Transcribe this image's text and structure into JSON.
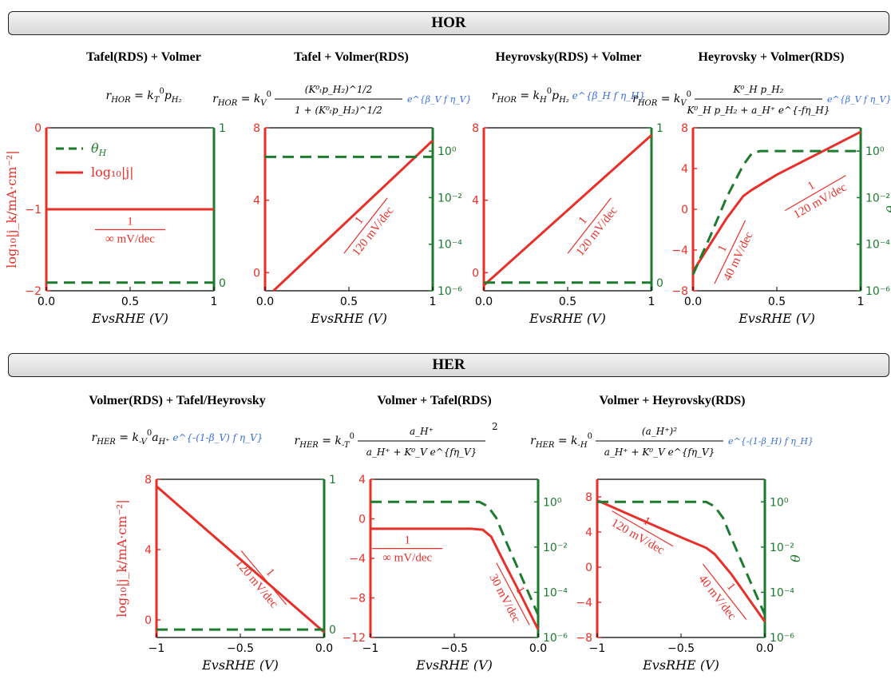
{
  "sections": {
    "hor_label": "HOR",
    "her_label": "HER"
  },
  "colors": {
    "current": "#e8302a",
    "coverage": "#1e7a2e",
    "exponent": "#3a6fd8",
    "banner_fill": "#e3e3e3"
  },
  "legend": {
    "theta": "θ",
    "theta_sub": "H",
    "logj": "log₁₀|j|"
  },
  "panels": [
    {
      "title": "Tafel(RDS) + Volmer",
      "eq_lhs": "r",
      "eq_lhs_sub": "HOR",
      "eq_body": "= k",
      "eq_k_sub": "T",
      "eq_k_sup": "0",
      "eq_rest": "p",
      "eq_rest_sub": "H₂",
      "eq_exp": ""
    },
    {
      "title": "Tafel + Volmer(RDS)",
      "eq_lhs": "r",
      "eq_lhs_sub": "HOR",
      "eq_body": "= k",
      "eq_k_sub": "V",
      "eq_k_sup": "0",
      "eq_num": "(K⁰ₜp_H₂)^1/2",
      "eq_den": "1 + (K⁰ₜp_H₂)^1/2",
      "eq_exp": "e^{β_V f η_V}"
    },
    {
      "title": "Heyrovsky(RDS) + Volmer",
      "eq_lhs": "r",
      "eq_lhs_sub": "HOR",
      "eq_body": "= k",
      "eq_k_sub": "H",
      "eq_k_sup": "0",
      "eq_rest": "p",
      "eq_rest_sub": "H₂",
      "eq_exp": "e^{β_H f η_H}"
    },
    {
      "title": "Heyrovsky + Volmer(RDS)",
      "eq_lhs": "r",
      "eq_lhs_sub": "HOR",
      "eq_body": "= k",
      "eq_k_sub": "V",
      "eq_k_sup": "0",
      "eq_num": "K⁰_H p_H₂",
      "eq_den": "K⁰_H p_H₂ + a_H⁺ e^{-fη_H}",
      "eq_exp": "e^{β_V f η_V}"
    },
    {
      "title": "Volmer(RDS) + Tafel/Heyrovsky",
      "eq_lhs": "r",
      "eq_lhs_sub": "HER",
      "eq_body": "= k",
      "eq_k_sub": "-V",
      "eq_k_sup": "0",
      "eq_rest": "a",
      "eq_rest_sub": "H⁺",
      "eq_exp": "e^{-(1-β_V) f η_V}"
    },
    {
      "title": "Volmer + Tafel(RDS)",
      "eq_lhs": "r",
      "eq_lhs_sub": "HER",
      "eq_body": "= k",
      "eq_k_sub": "-T",
      "eq_k_sup": "0",
      "eq_num": "a_H⁺",
      "eq_den": "a_H⁺ + K⁰_V e^{fη_V}",
      "eq_power": "2",
      "eq_exp": ""
    },
    {
      "title": "Volmer + Heyrovsky(RDS)",
      "eq_lhs": "r",
      "eq_lhs_sub": "HER",
      "eq_body": "= k",
      "eq_k_sub": "-H",
      "eq_k_sup": "0",
      "eq_num": "(a_H⁺)²",
      "eq_den": "a_H⁺ + K⁰_V e^{fη_V}",
      "eq_exp": "e^{-(1-β_H) f η_H}"
    }
  ],
  "chart_data": [
    {
      "type": "line",
      "xlabel": "EvsRHE (V)",
      "ylabel": "log₁₀|j_k/mA·cm⁻²|",
      "xlim": [
        0,
        1
      ],
      "xticks": [
        0.0,
        0.5,
        1.0
      ],
      "ylim": [
        -2,
        0
      ],
      "yticks": [
        0,
        -1,
        -2
      ],
      "y2lim": [
        0,
        1
      ],
      "y2ticks": [
        "1",
        "0"
      ],
      "y2scale": "linear",
      "series": [
        {
          "name": "log₁₀|j|",
          "style": "solid",
          "axis": "left",
          "x": [
            0,
            1
          ],
          "y": [
            -1,
            -1
          ]
        },
        {
          "name": "θH",
          "style": "dashed",
          "axis": "right",
          "x": [
            0,
            1
          ],
          "y": [
            0.05,
            0.05
          ]
        }
      ],
      "annotations": [
        {
          "num": "1",
          "den": "∞ mV/dec",
          "x": 0.5,
          "y": -1.25,
          "angle": 0
        }
      ]
    },
    {
      "type": "line",
      "xlabel": "EvsRHE (V)",
      "xlim": [
        0,
        1
      ],
      "xticks": [
        0.0,
        0.5,
        1.0
      ],
      "ylim": [
        -1,
        8
      ],
      "yticks": [
        8,
        4,
        0
      ],
      "y2lim": [
        -6,
        1
      ],
      "y2ticks": [
        "10⁰",
        "10⁻²",
        "10⁻⁴",
        "10⁻⁶"
      ],
      "y2scale": "log",
      "series": [
        {
          "style": "solid",
          "axis": "left",
          "x": [
            0.05,
            1.0
          ],
          "y": [
            -1,
            7.3
          ]
        },
        {
          "style": "dashed",
          "axis": "right",
          "x": [
            0,
            1
          ],
          "y": [
            -0.25,
            -0.25
          ]
        }
      ],
      "annotations": [
        {
          "num": "1",
          "den": "120 mV/dec",
          "x": 0.6,
          "y": 2.6,
          "angle": -52
        }
      ]
    },
    {
      "type": "line",
      "xlabel": "EvsRHE (V)",
      "xlim": [
        0,
        1
      ],
      "xticks": [
        0.0,
        0.5,
        1.0
      ],
      "ylim": [
        -1,
        8
      ],
      "yticks": [
        8,
        4,
        0
      ],
      "y2lim": [
        0,
        1
      ],
      "y2ticks": [
        "1",
        "0"
      ],
      "y2scale": "linear",
      "series": [
        {
          "style": "solid",
          "axis": "left",
          "x": [
            0,
            1
          ],
          "y": [
            -0.7,
            7.6
          ]
        },
        {
          "style": "dashed",
          "axis": "right",
          "x": [
            0,
            1
          ],
          "y": [
            0.05,
            0.05
          ]
        }
      ],
      "annotations": [
        {
          "num": "1",
          "den": "120 mV/dec",
          "x": 0.63,
          "y": 2.6,
          "angle": -52
        }
      ]
    },
    {
      "type": "line",
      "xlabel": "EvsRHE (V)",
      "xlim": [
        0,
        1
      ],
      "xticks": [
        0.0,
        0.5,
        1.0
      ],
      "ylim": [
        -8,
        8
      ],
      "yticks": [
        8,
        4,
        0,
        -4,
        -8
      ],
      "y2lim": [
        -6,
        1
      ],
      "y2ticks": [
        "10⁰",
        "10⁻²",
        "10⁻⁴",
        "10⁻⁶"
      ],
      "y2scale": "log",
      "y2label": "θ",
      "series": [
        {
          "style": "solid",
          "axis": "left",
          "x": [
            0.0,
            0.1,
            0.2,
            0.3,
            0.35,
            0.5,
            0.75,
            1.0
          ],
          "y": [
            -6.1,
            -3.5,
            -0.9,
            1.3,
            1.9,
            3.4,
            5.5,
            7.6
          ]
        },
        {
          "style": "dashed",
          "axis": "right",
          "x": [
            0.0,
            0.1,
            0.2,
            0.3,
            0.35,
            0.4,
            1.0
          ],
          "y": [
            -5.3,
            -3.7,
            -2.0,
            -0.6,
            -0.1,
            0.0,
            0.0
          ]
        }
      ],
      "annotations": [
        {
          "num": "1",
          "den": "40 mV/dec",
          "x": 0.22,
          "y": -4.2,
          "angle": -64
        },
        {
          "num": "1",
          "den": "120 mV/dec",
          "x": 0.73,
          "y": 1.6,
          "angle": -30
        }
      ]
    },
    {
      "type": "line",
      "xlabel": "EvsRHE (V)",
      "ylabel": "log₁₀|j_k/mA·cm⁻²|",
      "xlim": [
        -1,
        0
      ],
      "xticks": [
        -1.0,
        -0.5,
        0.0
      ],
      "ylim": [
        -1,
        8
      ],
      "yticks": [
        8,
        4,
        0
      ],
      "y2lim": [
        0,
        1
      ],
      "y2ticks": [
        "1",
        "0"
      ],
      "y2scale": "linear",
      "series": [
        {
          "style": "solid",
          "axis": "left",
          "x": [
            -1,
            0
          ],
          "y": [
            7.6,
            -0.7
          ]
        },
        {
          "style": "dashed",
          "axis": "right",
          "x": [
            -1,
            0
          ],
          "y": [
            0.05,
            0.05
          ]
        }
      ],
      "annotations": [
        {
          "num": "1",
          "den": "120 mV/dec",
          "x": -0.36,
          "y": 2.4,
          "angle": 50
        }
      ]
    },
    {
      "type": "line",
      "xlabel": "EvsRHE (V)",
      "xlim": [
        -1,
        0
      ],
      "xticks": [
        -1.0,
        -0.5,
        0.0
      ],
      "ylim": [
        -12,
        4
      ],
      "yticks": [
        4,
        0,
        -4,
        -8,
        -12
      ],
      "y2lim": [
        -6,
        1
      ],
      "y2ticks": [
        "10⁰",
        "10⁻²",
        "10⁻⁴",
        "10⁻⁶"
      ],
      "y2scale": "log",
      "series": [
        {
          "style": "solid",
          "axis": "left",
          "x": [
            -1.0,
            -0.4,
            -0.33,
            -0.28,
            -0.2,
            -0.1,
            0.0
          ],
          "y": [
            -1.0,
            -1.0,
            -1.1,
            -1.8,
            -4.5,
            -7.8,
            -11.2
          ]
        },
        {
          "style": "dashed",
          "axis": "right",
          "x": [
            -1.0,
            -0.35,
            -0.3,
            -0.25,
            -0.2,
            -0.1,
            0.0
          ],
          "y": [
            0.0,
            0.0,
            -0.2,
            -0.7,
            -1.6,
            -3.3,
            -5.0
          ]
        }
      ],
      "annotations": [
        {
          "num": "1",
          "den": "∞ mV/dec",
          "x": -0.78,
          "y": -3.0,
          "angle": 0
        },
        {
          "num": "1",
          "den": "30 mV/dec",
          "x": -0.15,
          "y": -7.6,
          "angle": 62
        }
      ]
    },
    {
      "type": "line",
      "xlabel": "EvsRHE (V)",
      "xlim": [
        -1,
        0
      ],
      "xticks": [
        -1.0,
        -0.5,
        0.0
      ],
      "ylim": [
        -8,
        10
      ],
      "yticks": [
        8,
        4,
        0,
        -4,
        -8
      ],
      "y2lim": [
        -6,
        1
      ],
      "y2ticks": [
        "10⁰",
        "10⁻²",
        "10⁻⁴",
        "10⁻⁶"
      ],
      "y2scale": "log",
      "y2label": "θ",
      "series": [
        {
          "style": "solid",
          "axis": "left",
          "x": [
            -1.0,
            -0.5,
            -0.35,
            -0.3,
            -0.2,
            -0.1,
            0.0
          ],
          "y": [
            7.6,
            3.4,
            2.2,
            1.5,
            -0.8,
            -3.5,
            -6.2
          ]
        },
        {
          "style": "dashed",
          "axis": "right",
          "x": [
            -1.0,
            -0.35,
            -0.3,
            -0.25,
            -0.2,
            -0.1,
            0.0
          ],
          "y": [
            0.0,
            0.0,
            -0.2,
            -0.7,
            -1.6,
            -3.3,
            -5.0
          ]
        }
      ],
      "annotations": [
        {
          "num": "1",
          "den": "120 mV/dec",
          "x": -0.73,
          "y": 4.4,
          "angle": 30
        },
        {
          "num": "1",
          "den": "40 mV/dec",
          "x": -0.24,
          "y": -2.8,
          "angle": 52
        }
      ]
    }
  ]
}
